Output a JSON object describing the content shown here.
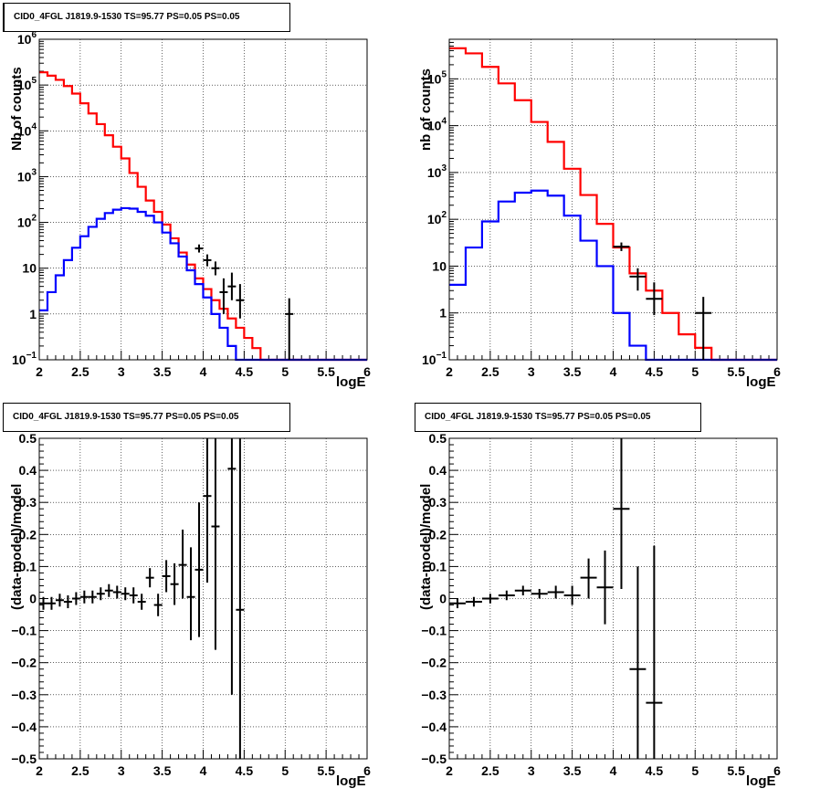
{
  "chart_data": [
    {
      "type": "line",
      "title": "CID0_4FGL J1819.9-1530 TS=95.77 PS=0.05 PS=0.05",
      "xlabel": "logE",
      "ylabel": "Nb of counts",
      "xlim": [
        2,
        6
      ],
      "ylim": [
        0.1,
        1000000
      ],
      "y_scale": "log",
      "grid": true,
      "x_ticks": [
        "2",
        "2.5",
        "3",
        "3.5",
        "4",
        "4.5",
        "5",
        "5.5",
        "6"
      ],
      "y_ticks": [
        {
          "v": 0.1,
          "b": "10",
          "e": "−1"
        },
        {
          "v": 1,
          "b": "1",
          "e": ""
        },
        {
          "v": 10,
          "b": "10",
          "e": ""
        },
        {
          "v": 100,
          "b": "10",
          "e": "2"
        },
        {
          "v": 1000,
          "b": "10",
          "e": "3"
        },
        {
          "v": 10000,
          "b": "10",
          "e": "4"
        },
        {
          "v": 100000,
          "b": "10",
          "e": "5"
        },
        {
          "v": 1000000,
          "b": "10",
          "e": "6"
        }
      ],
      "bin_edges": [
        2.0,
        2.1,
        2.2,
        2.3,
        2.4,
        2.5,
        2.6,
        2.7,
        2.8,
        2.9,
        3.0,
        3.1,
        3.2,
        3.3,
        3.4,
        3.5,
        3.6,
        3.7,
        3.8,
        3.9,
        4.0,
        4.1,
        4.2,
        4.3,
        4.4,
        4.5,
        4.6,
        4.7,
        4.8,
        4.9,
        5.0,
        5.1,
        5.2,
        5.3,
        5.4,
        5.5,
        5.6,
        5.7,
        5.8,
        5.9,
        6.0
      ],
      "series": [
        {
          "color": "#ff0000",
          "values": [
            190000,
            160000,
            130000,
            95000,
            65000,
            40000,
            24000,
            14000,
            8000,
            4500,
            2500,
            1200,
            600,
            300,
            170,
            90,
            45,
            22,
            12,
            6,
            3.5,
            2,
            1.3,
            0.8,
            0.5,
            0.3,
            0.18,
            0.1,
            0.1,
            0.1,
            0.1,
            0.1,
            0.1,
            0.1,
            0.1,
            0.1,
            0.1,
            0.1,
            0.1,
            0.1
          ]
        },
        {
          "color": "#0000ff",
          "values": [
            1.2,
            3,
            7,
            15,
            28,
            50,
            80,
            120,
            160,
            190,
            205,
            200,
            170,
            140,
            100,
            60,
            35,
            18,
            9,
            4.5,
            2.3,
            1,
            0.5,
            0.2,
            0.1,
            0.1,
            0.1,
            0.1,
            0.1,
            0.1,
            0.1,
            0.1,
            0.1,
            0.1,
            0.1,
            0.1,
            0.1,
            0.1,
            0.1,
            0.1
          ]
        }
      ],
      "points": [
        {
          "x": 3.95,
          "y": 27,
          "lo": 22,
          "hi": 33,
          "xerr": 0.05
        },
        {
          "x": 4.05,
          "y": 15,
          "lo": 11,
          "hi": 20,
          "xerr": 0.05
        },
        {
          "x": 4.15,
          "y": 10,
          "lo": 7,
          "hi": 14,
          "xerr": 0.05
        },
        {
          "x": 4.25,
          "y": 3,
          "lo": 1.0,
          "hi": 6,
          "xerr": 0.05
        },
        {
          "x": 4.35,
          "y": 4,
          "lo": 2,
          "hi": 8,
          "xerr": 0.05
        },
        {
          "x": 4.45,
          "y": 2,
          "lo": 0.8,
          "hi": 4.5,
          "xerr": 0.05
        },
        {
          "x": 5.05,
          "y": 1,
          "lo": 0.1,
          "hi": 2.2,
          "xerr": 0.05
        }
      ]
    },
    {
      "type": "line",
      "title": "CID0_4FGL J1819.9-1530 TS=95.77 PS=0.05 PS=0.05",
      "xlabel": "logE",
      "ylabel": "nb of counts",
      "xlim": [
        2,
        6
      ],
      "ylim": [
        0.1,
        700000
      ],
      "y_scale": "log",
      "grid": true,
      "x_ticks": [
        "2",
        "2.5",
        "3",
        "3.5",
        "4",
        "4.5",
        "5",
        "5.5",
        "6"
      ],
      "y_ticks": [
        {
          "v": 0.1,
          "b": "10",
          "e": "−1"
        },
        {
          "v": 1,
          "b": "1",
          "e": ""
        },
        {
          "v": 10,
          "b": "10",
          "e": ""
        },
        {
          "v": 100,
          "b": "10",
          "e": "2"
        },
        {
          "v": 1000,
          "b": "10",
          "e": "3"
        },
        {
          "v": 10000,
          "b": "10",
          "e": "4"
        },
        {
          "v": 100000,
          "b": "10",
          "e": "5"
        }
      ],
      "bin_edges": [
        2.0,
        2.2,
        2.4,
        2.6,
        2.8,
        3.0,
        3.2,
        3.4,
        3.6,
        3.8,
        4.0,
        4.2,
        4.4,
        4.6,
        4.8,
        5.0,
        5.2,
        5.4,
        5.6,
        5.8,
        6.0
      ],
      "series": [
        {
          "color": "#ff0000",
          "values": [
            450000,
            350000,
            180000,
            80000,
            35000,
            12000,
            4500,
            1200,
            330,
            80,
            25,
            7,
            3,
            1,
            0.35,
            0.18,
            0.1,
            0.1,
            0.1,
            0.1
          ]
        },
        {
          "color": "#0000ff",
          "values": [
            4,
            25,
            90,
            240,
            370,
            410,
            320,
            120,
            35,
            10,
            1,
            0.2,
            0.1,
            0.1,
            0.1,
            0.1,
            0.1,
            0.1,
            0.1,
            0.1
          ]
        }
      ],
      "points": [
        {
          "x": 4.1,
          "y": 26,
          "lo": 21,
          "hi": 32,
          "xerr": 0.1
        },
        {
          "x": 4.3,
          "y": 6,
          "lo": 3,
          "hi": 9,
          "xerr": 0.1
        },
        {
          "x": 4.5,
          "y": 2,
          "lo": 0.9,
          "hi": 4.5,
          "xerr": 0.1
        },
        {
          "x": 5.1,
          "y": 1,
          "lo": 0.1,
          "hi": 2.2,
          "xerr": 0.1
        }
      ]
    },
    {
      "type": "scatter",
      "title": "CID0_4FGL J1819.9-1530 TS=95.77 PS=0.05 PS=0.05",
      "xlabel": "logE",
      "ylabel": "(data-model)/model",
      "xlim": [
        2,
        6
      ],
      "ylim": [
        -0.5,
        0.5
      ],
      "y_scale": "linear",
      "grid": true,
      "x_ticks": [
        "2",
        "2.5",
        "3",
        "3.5",
        "4",
        "4.5",
        "5",
        "5.5",
        "6"
      ],
      "y_ticks": [
        {
          "v": -0.5,
          "b": "−0.5",
          "e": ""
        },
        {
          "v": -0.4,
          "b": "−0.4",
          "e": ""
        },
        {
          "v": -0.3,
          "b": "−0.3",
          "e": ""
        },
        {
          "v": -0.2,
          "b": "−0.2",
          "e": ""
        },
        {
          "v": -0.1,
          "b": "−0.1",
          "e": ""
        },
        {
          "v": 0,
          "b": "0",
          "e": ""
        },
        {
          "v": 0.1,
          "b": "0.1",
          "e": ""
        },
        {
          "v": 0.2,
          "b": "0.2",
          "e": ""
        },
        {
          "v": 0.3,
          "b": "0.3",
          "e": ""
        },
        {
          "v": 0.4,
          "b": "0.4",
          "e": ""
        },
        {
          "v": 0.5,
          "b": "0.5",
          "e": ""
        }
      ],
      "points": [
        {
          "x": 2.05,
          "y": -0.015,
          "lo": -0.035,
          "hi": 0.005,
          "xerr": 0.05
        },
        {
          "x": 2.15,
          "y": -0.015,
          "lo": -0.035,
          "hi": 0.005,
          "xerr": 0.05
        },
        {
          "x": 2.25,
          "y": -0.005,
          "lo": -0.025,
          "hi": 0.015,
          "xerr": 0.05
        },
        {
          "x": 2.35,
          "y": -0.01,
          "lo": -0.03,
          "hi": 0.01,
          "xerr": 0.05
        },
        {
          "x": 2.45,
          "y": 0.0,
          "lo": -0.02,
          "hi": 0.02,
          "xerr": 0.05
        },
        {
          "x": 2.55,
          "y": 0.005,
          "lo": -0.015,
          "hi": 0.025,
          "xerr": 0.05
        },
        {
          "x": 2.65,
          "y": 0.005,
          "lo": -0.015,
          "hi": 0.025,
          "xerr": 0.05
        },
        {
          "x": 2.75,
          "y": 0.015,
          "lo": -0.005,
          "hi": 0.035,
          "xerr": 0.05
        },
        {
          "x": 2.85,
          "y": 0.025,
          "lo": 0.005,
          "hi": 0.045,
          "xerr": 0.05
        },
        {
          "x": 2.95,
          "y": 0.02,
          "lo": 0.0,
          "hi": 0.04,
          "xerr": 0.05
        },
        {
          "x": 3.05,
          "y": 0.015,
          "lo": -0.005,
          "hi": 0.035,
          "xerr": 0.05
        },
        {
          "x": 3.15,
          "y": 0.01,
          "lo": -0.015,
          "hi": 0.035,
          "xerr": 0.05
        },
        {
          "x": 3.25,
          "y": -0.01,
          "lo": -0.035,
          "hi": 0.015,
          "xerr": 0.05
        },
        {
          "x": 3.35,
          "y": 0.065,
          "lo": 0.035,
          "hi": 0.095,
          "xerr": 0.05
        },
        {
          "x": 3.45,
          "y": -0.02,
          "lo": -0.055,
          "hi": 0.015,
          "xerr": 0.05
        },
        {
          "x": 3.55,
          "y": 0.07,
          "lo": 0.02,
          "hi": 0.12,
          "xerr": 0.05
        },
        {
          "x": 3.65,
          "y": 0.045,
          "lo": -0.02,
          "hi": 0.11,
          "xerr": 0.05
        },
        {
          "x": 3.75,
          "y": 0.105,
          "lo": 0.0,
          "hi": 0.215,
          "xerr": 0.05
        },
        {
          "x": 3.85,
          "y": 0.005,
          "lo": -0.13,
          "hi": 0.16,
          "xerr": 0.05
        },
        {
          "x": 3.95,
          "y": 0.09,
          "lo": -0.12,
          "hi": 0.3,
          "xerr": 0.05
        },
        {
          "x": 4.05,
          "y": 0.32,
          "lo": 0.05,
          "hi": 0.5,
          "xerr": 0.05
        },
        {
          "x": 4.15,
          "y": 0.225,
          "lo": -0.16,
          "hi": 0.5,
          "xerr": 0.05
        },
        {
          "x": 4.35,
          "y": 0.405,
          "lo": -0.3,
          "hi": 0.5,
          "xerr": 0.05
        },
        {
          "x": 4.45,
          "y": -0.035,
          "lo": -0.5,
          "hi": 0.5,
          "xerr": 0.05
        }
      ]
    },
    {
      "type": "scatter",
      "title": "CID0_4FGL J1819.9-1530 TS=95.77 PS=0.05 PS=0.05",
      "xlabel": "logE",
      "ylabel": "(data-model)/model",
      "xlim": [
        2,
        6
      ],
      "ylim": [
        -0.5,
        0.5
      ],
      "y_scale": "linear",
      "grid": true,
      "x_ticks": [
        "2",
        "2.5",
        "3",
        "3.5",
        "4",
        "4.5",
        "5",
        "5.5",
        "6"
      ],
      "y_ticks": [
        {
          "v": -0.5,
          "b": "−0.5",
          "e": ""
        },
        {
          "v": -0.4,
          "b": "−0.4",
          "e": ""
        },
        {
          "v": -0.3,
          "b": "−0.3",
          "e": ""
        },
        {
          "v": -0.2,
          "b": "−0.2",
          "e": ""
        },
        {
          "v": -0.1,
          "b": "−0.1",
          "e": ""
        },
        {
          "v": 0,
          "b": "0",
          "e": ""
        },
        {
          "v": 0.1,
          "b": "0.1",
          "e": ""
        },
        {
          "v": 0.2,
          "b": "0.2",
          "e": ""
        },
        {
          "v": 0.3,
          "b": "0.3",
          "e": ""
        },
        {
          "v": 0.4,
          "b": "0.4",
          "e": ""
        },
        {
          "v": 0.5,
          "b": "0.5",
          "e": ""
        }
      ],
      "points": [
        {
          "x": 2.1,
          "y": -0.015,
          "lo": -0.03,
          "hi": 0.0,
          "xerr": 0.1
        },
        {
          "x": 2.3,
          "y": -0.01,
          "lo": -0.025,
          "hi": 0.005,
          "xerr": 0.1
        },
        {
          "x": 2.5,
          "y": 0.0,
          "lo": -0.015,
          "hi": 0.015,
          "xerr": 0.1
        },
        {
          "x": 2.7,
          "y": 0.01,
          "lo": -0.005,
          "hi": 0.025,
          "xerr": 0.1
        },
        {
          "x": 2.9,
          "y": 0.025,
          "lo": 0.01,
          "hi": 0.04,
          "xerr": 0.1
        },
        {
          "x": 3.1,
          "y": 0.015,
          "lo": 0.0,
          "hi": 0.03,
          "xerr": 0.1
        },
        {
          "x": 3.3,
          "y": 0.02,
          "lo": 0.0,
          "hi": 0.04,
          "xerr": 0.1
        },
        {
          "x": 3.5,
          "y": 0.01,
          "lo": -0.02,
          "hi": 0.04,
          "xerr": 0.1
        },
        {
          "x": 3.7,
          "y": 0.065,
          "lo": 0.0,
          "hi": 0.125,
          "xerr": 0.1
        },
        {
          "x": 3.9,
          "y": 0.035,
          "lo": -0.08,
          "hi": 0.15,
          "xerr": 0.1
        },
        {
          "x": 4.1,
          "y": 0.28,
          "lo": 0.03,
          "hi": 0.5,
          "xerr": 0.1
        },
        {
          "x": 4.3,
          "y": -0.22,
          "lo": -0.5,
          "hi": 0.1,
          "xerr": 0.1
        },
        {
          "x": 4.5,
          "y": -0.325,
          "lo": -0.5,
          "hi": 0.165,
          "xerr": 0.1
        }
      ]
    }
  ]
}
